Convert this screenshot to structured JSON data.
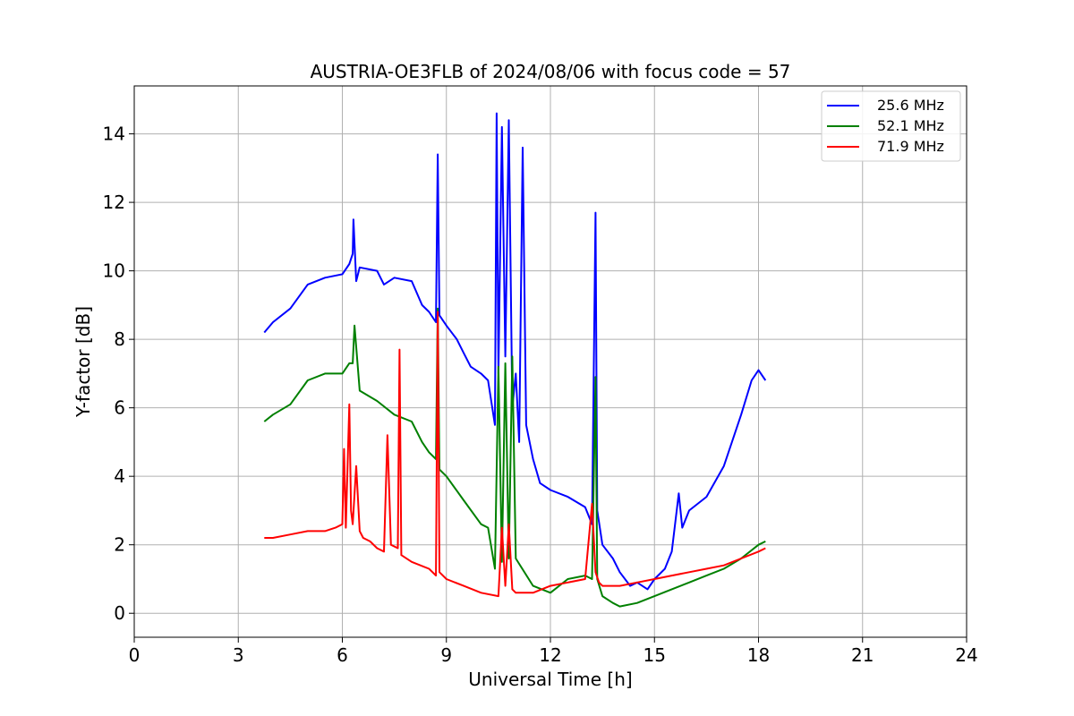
{
  "chart_data": {
    "type": "line",
    "title": "AUSTRIA-OE3FLB of 2024/08/06 with focus code = 57",
    "xlabel": "Universal Time [h]",
    "ylabel": "Y-factor [dB]",
    "xlim": [
      0,
      24
    ],
    "ylim": [
      -0.7,
      15.4
    ],
    "xticks": [
      0,
      3,
      6,
      9,
      12,
      15,
      18,
      21,
      24
    ],
    "yticks": [
      0,
      2,
      4,
      6,
      8,
      10,
      12,
      14
    ],
    "grid": true,
    "legend_position": "top-right",
    "series": [
      {
        "name": "25.6 MHz",
        "color": "#0000ff",
        "x": [
          3.75,
          4.0,
          4.5,
          5.0,
          5.5,
          6.0,
          6.2,
          6.3,
          6.32,
          6.4,
          6.5,
          7.0,
          7.2,
          7.5,
          8.0,
          8.3,
          8.5,
          8.7,
          8.75,
          8.8,
          9.0,
          9.3,
          9.5,
          9.7,
          10.0,
          10.2,
          10.4,
          10.45,
          10.5,
          10.6,
          10.7,
          10.8,
          10.9,
          11.0,
          11.1,
          11.2,
          11.3,
          11.5,
          11.7,
          12.0,
          12.5,
          13.0,
          13.2,
          13.3,
          13.35,
          13.5,
          13.8,
          14.0,
          14.3,
          14.5,
          14.8,
          15.0,
          15.3,
          15.5,
          15.7,
          15.8,
          16.0,
          16.5,
          17.0,
          17.5,
          17.8,
          18.0,
          18.2
        ],
        "y": [
          8.2,
          8.5,
          8.9,
          9.6,
          9.8,
          9.9,
          10.2,
          10.5,
          11.5,
          9.7,
          10.1,
          10.0,
          9.6,
          9.8,
          9.7,
          9.0,
          8.8,
          8.5,
          13.4,
          8.7,
          8.4,
          8.0,
          7.6,
          7.2,
          7.0,
          6.8,
          5.5,
          14.6,
          7.0,
          14.2,
          7.5,
          14.4,
          6.0,
          7.0,
          5.0,
          13.6,
          5.5,
          4.5,
          3.8,
          3.6,
          3.4,
          3.1,
          2.6,
          11.7,
          3.0,
          2.0,
          1.6,
          1.2,
          0.8,
          0.9,
          0.7,
          1.0,
          1.3,
          1.8,
          3.5,
          2.5,
          3.0,
          3.4,
          4.3,
          5.8,
          6.8,
          7.1,
          6.8
        ]
      },
      {
        "name": "52.1 MHz",
        "color": "#008000",
        "x": [
          3.75,
          4.0,
          4.5,
          5.0,
          5.5,
          6.0,
          6.2,
          6.3,
          6.35,
          6.5,
          7.0,
          7.5,
          8.0,
          8.3,
          8.5,
          8.7,
          8.75,
          8.8,
          9.0,
          9.5,
          10.0,
          10.2,
          10.4,
          10.5,
          10.6,
          10.7,
          10.8,
          10.9,
          11.0,
          11.5,
          12.0,
          12.5,
          13.0,
          13.2,
          13.3,
          13.35,
          13.5,
          13.8,
          14.0,
          14.5,
          15.0,
          15.5,
          16.0,
          16.5,
          17.0,
          17.5,
          18.0,
          18.2
        ],
        "y": [
          5.6,
          5.8,
          6.1,
          6.8,
          7.0,
          7.0,
          7.3,
          7.3,
          8.4,
          6.5,
          6.2,
          5.8,
          5.6,
          5.0,
          4.7,
          4.5,
          8.9,
          4.2,
          4.0,
          3.3,
          2.6,
          2.5,
          1.3,
          7.2,
          1.5,
          7.3,
          1.6,
          7.5,
          1.6,
          0.8,
          0.6,
          1.0,
          1.1,
          1.0,
          6.9,
          1.0,
          0.5,
          0.3,
          0.2,
          0.3,
          0.5,
          0.7,
          0.9,
          1.1,
          1.3,
          1.6,
          2.0,
          2.1
        ]
      },
      {
        "name": "71.9 MHz",
        "color": "#ff0000",
        "x": [
          3.75,
          4.0,
          4.5,
          5.0,
          5.5,
          5.8,
          6.0,
          6.05,
          6.1,
          6.2,
          6.25,
          6.3,
          6.4,
          6.5,
          6.6,
          6.8,
          7.0,
          7.2,
          7.3,
          7.4,
          7.6,
          7.65,
          7.7,
          8.0,
          8.5,
          8.7,
          8.75,
          8.8,
          9.0,
          9.5,
          10.0,
          10.5,
          10.6,
          10.7,
          10.8,
          10.9,
          11.0,
          11.5,
          12.0,
          12.5,
          13.0,
          13.2,
          13.3,
          13.4,
          13.5,
          14.0,
          14.5,
          15.0,
          15.5,
          16.0,
          16.5,
          17.0,
          17.5,
          18.0,
          18.2
        ],
        "y": [
          2.2,
          2.2,
          2.3,
          2.4,
          2.4,
          2.5,
          2.6,
          4.8,
          2.5,
          6.1,
          3.0,
          2.6,
          4.3,
          2.4,
          2.2,
          2.1,
          1.9,
          1.8,
          5.2,
          2.0,
          1.9,
          7.7,
          1.7,
          1.5,
          1.3,
          1.1,
          8.8,
          1.2,
          1.0,
          0.8,
          0.6,
          0.5,
          2.5,
          0.8,
          2.6,
          0.7,
          0.6,
          0.6,
          0.8,
          0.9,
          1.0,
          3.2,
          1.2,
          0.9,
          0.8,
          0.8,
          0.9,
          1.0,
          1.1,
          1.2,
          1.3,
          1.4,
          1.6,
          1.8,
          1.9
        ]
      }
    ]
  }
}
